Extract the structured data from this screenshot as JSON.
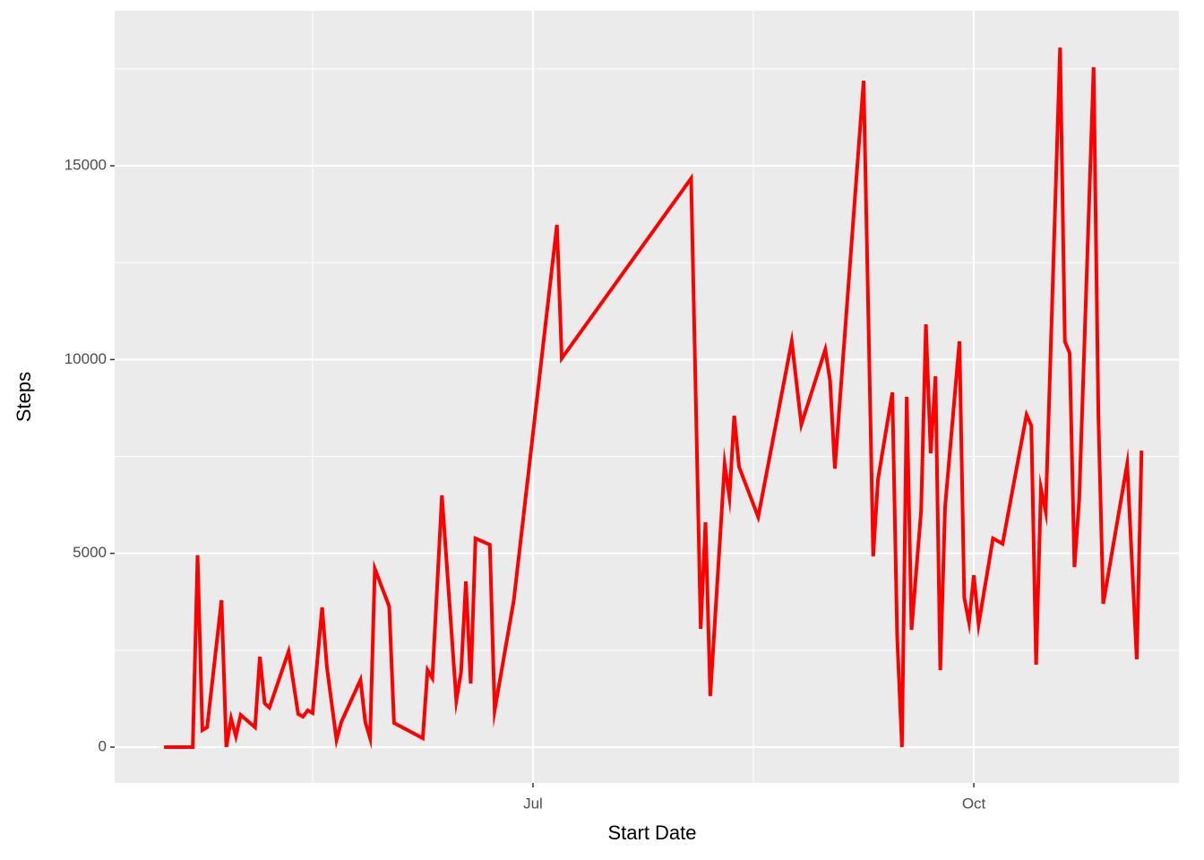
{
  "chart_data": {
    "type": "line",
    "x_label": "Start Date",
    "y_label": "Steps",
    "x": [
      -77,
      -71,
      -70,
      -69,
      -68,
      -65,
      -64,
      -63,
      -62,
      -61,
      -58,
      -57,
      -56,
      -55,
      -51,
      -49,
      -48,
      -47,
      -46,
      -44,
      -43,
      -41,
      -40,
      -36,
      -35,
      -34,
      -33,
      -30,
      -29,
      -23,
      -22,
      -21,
      -19,
      -16,
      -15,
      -14,
      -13,
      -12,
      -9,
      -8,
      -4,
      5,
      6,
      33,
      35,
      36,
      37,
      40,
      41,
      42,
      43,
      47,
      54,
      56,
      61,
      62,
      63,
      69,
      71,
      72,
      75,
      76,
      77,
      78,
      79,
      81,
      82,
      83,
      84,
      85,
      86,
      89,
      90,
      91,
      92,
      93,
      96,
      98,
      103,
      104,
      105,
      106,
      107,
      110,
      111,
      112,
      113,
      114,
      117,
      118,
      119,
      124,
      126,
      127
    ],
    "series": [
      {
        "name": "Steps",
        "color": "#ff0000",
        "values": [
          0,
          0,
          4950,
          440,
          510,
          3790,
          0,
          740,
          280,
          830,
          510,
          2330,
          1130,
          1020,
          2470,
          855,
          786,
          948,
          878,
          3605,
          2057,
          185,
          647,
          1733,
          647,
          231,
          4599,
          3628,
          624,
          231,
          1987,
          1779,
          6494,
          1202,
          1941,
          4275,
          1641,
          5385,
          5223,
          948,
          3790,
          13473,
          10030,
          14675,
          3051,
          5801,
          1317,
          7303,
          6448,
          8551,
          7233,
          5939,
          10469,
          8320,
          10261,
          9452,
          7187,
          17194,
          4922,
          6910,
          9152,
          2866,
          0,
          9036,
          3027,
          6101,
          10908,
          7580,
          9568,
          1987,
          6193,
          10469,
          3859,
          3212,
          4437,
          3166,
          5385,
          5246,
          8574,
          8296,
          2126,
          6679,
          6078,
          18049,
          10469,
          10168,
          4645,
          6401,
          17541,
          8528,
          3698,
          7303,
          2265,
          7650
        ]
      }
    ],
    "xlim": [
      -87.3,
      134.8
    ],
    "xticks": [
      {
        "value": 0,
        "label": "Jul"
      },
      {
        "value": 92,
        "label": "Oct"
      }
    ],
    "x_minor_ticks": [
      -46,
      46
    ],
    "ylim": [
      -925,
      19000
    ],
    "yticks": [
      0,
      5000,
      10000,
      15000
    ],
    "y_minor_ticks": [
      2500,
      7500,
      12500,
      17500
    ],
    "grid": true
  }
}
